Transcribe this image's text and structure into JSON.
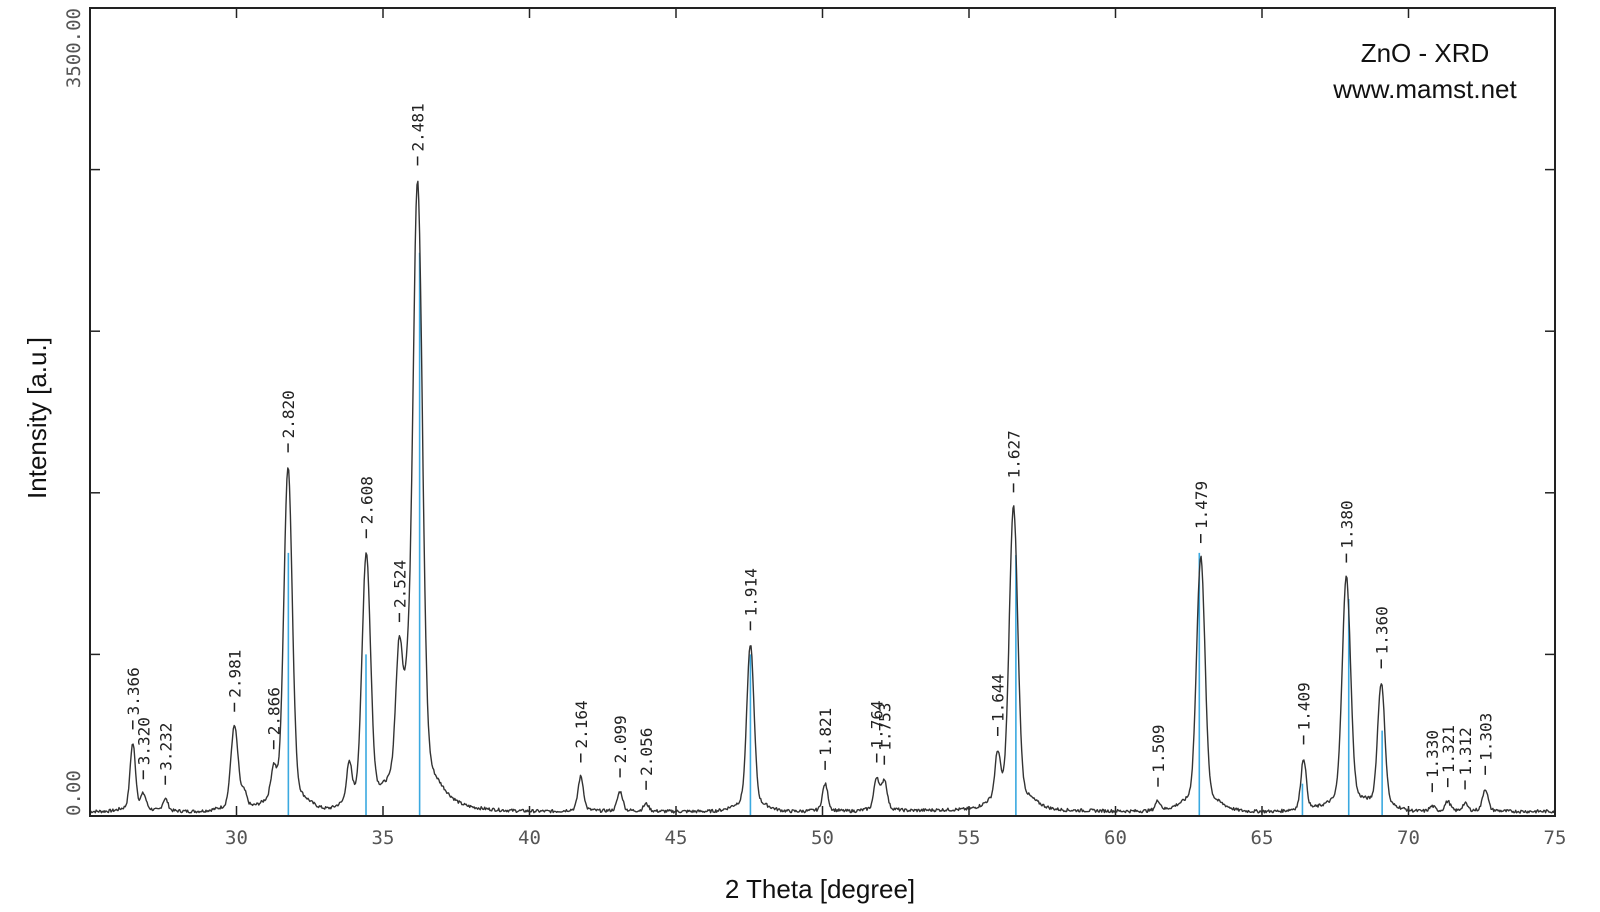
{
  "chart_data": {
    "type": "line",
    "title_lines": [
      "ZnO - XRD",
      "www.mamst.net"
    ],
    "xlabel": "2 Theta [degree]",
    "ylabel": "Intensity [a.u.]",
    "xlim": [
      25,
      75
    ],
    "ylim": [
      0,
      3500
    ],
    "xticks": [
      30,
      35,
      40,
      45,
      50,
      55,
      60,
      65,
      70,
      75
    ],
    "yticks": [
      0,
      700,
      1400,
      2100,
      2800,
      3500
    ],
    "ytick_labels": [
      "0.00",
      "3500.00"
    ],
    "baseline": 20,
    "pattern": [
      [
        25.0,
        20
      ],
      [
        26.46,
        290
      ],
      [
        26.82,
        80
      ],
      [
        27.57,
        70
      ],
      [
        29.93,
        360
      ],
      [
        30.26,
        80
      ],
      [
        31.27,
        140
      ],
      [
        31.76,
        1400
      ],
      [
        33.85,
        170
      ],
      [
        34.43,
        1040
      ],
      [
        35.56,
        560
      ],
      [
        35.82,
        230
      ],
      [
        36.18,
        2500
      ],
      [
        41.75,
        160
      ],
      [
        43.09,
        100
      ],
      [
        43.98,
        50
      ],
      [
        47.54,
        690
      ],
      [
        50.09,
        130
      ],
      [
        51.85,
        150
      ],
      [
        52.11,
        140
      ],
      [
        55.98,
        200
      ],
      [
        56.52,
        1230
      ],
      [
        61.45,
        60
      ],
      [
        62.91,
        1040
      ],
      [
        66.42,
        230
      ],
      [
        67.88,
        960
      ],
      [
        69.07,
        530
      ],
      [
        70.81,
        40
      ],
      [
        71.34,
        60
      ],
      [
        71.93,
        50
      ],
      [
        72.62,
        110
      ],
      [
        75.0,
        20
      ]
    ],
    "reference_lines": [
      {
        "x": 31.77,
        "y": 1140
      },
      {
        "x": 34.42,
        "y": 700
      },
      {
        "x": 36.25,
        "y": 2440
      },
      {
        "x": 47.54,
        "y": 700
      },
      {
        "x": 56.6,
        "y": 1130
      },
      {
        "x": 62.86,
        "y": 1140
      },
      {
        "x": 66.38,
        "y": 140
      },
      {
        "x": 67.96,
        "y": 940
      },
      {
        "x": 69.1,
        "y": 370
      }
    ],
    "peak_labels": [
      {
        "x": 26.46,
        "text": "3.366"
      },
      {
        "x": 26.82,
        "text": "3.320"
      },
      {
        "x": 27.57,
        "text": "3.232"
      },
      {
        "x": 29.93,
        "text": "2.981"
      },
      {
        "x": 31.27,
        "text": "2.866"
      },
      {
        "x": 31.76,
        "text": "2.820"
      },
      {
        "x": 34.43,
        "text": "2.608"
      },
      {
        "x": 35.56,
        "text": "2.524"
      },
      {
        "x": 36.18,
        "text": "2.481"
      },
      {
        "x": 41.75,
        "text": "2.164"
      },
      {
        "x": 43.09,
        "text": "2.099"
      },
      {
        "x": 43.98,
        "text": "2.056"
      },
      {
        "x": 47.54,
        "text": "1.914"
      },
      {
        "x": 50.09,
        "text": "1.821"
      },
      {
        "x": 51.85,
        "text": "1.764"
      },
      {
        "x": 52.11,
        "text": "1.753"
      },
      {
        "x": 55.98,
        "text": "1.644"
      },
      {
        "x": 56.52,
        "text": "1.627"
      },
      {
        "x": 61.45,
        "text": "1.509"
      },
      {
        "x": 62.91,
        "text": "1.479"
      },
      {
        "x": 66.42,
        "text": "1.409"
      },
      {
        "x": 67.88,
        "text": "1.380"
      },
      {
        "x": 69.07,
        "text": "1.360"
      },
      {
        "x": 70.81,
        "text": "1.330"
      },
      {
        "x": 71.34,
        "text": "1.321"
      },
      {
        "x": 71.93,
        "text": "1.312"
      },
      {
        "x": 72.62,
        "text": "1.303"
      }
    ]
  },
  "colors": {
    "trace": "#333333",
    "reference": "#3aa9e0",
    "frame": "#222222"
  }
}
